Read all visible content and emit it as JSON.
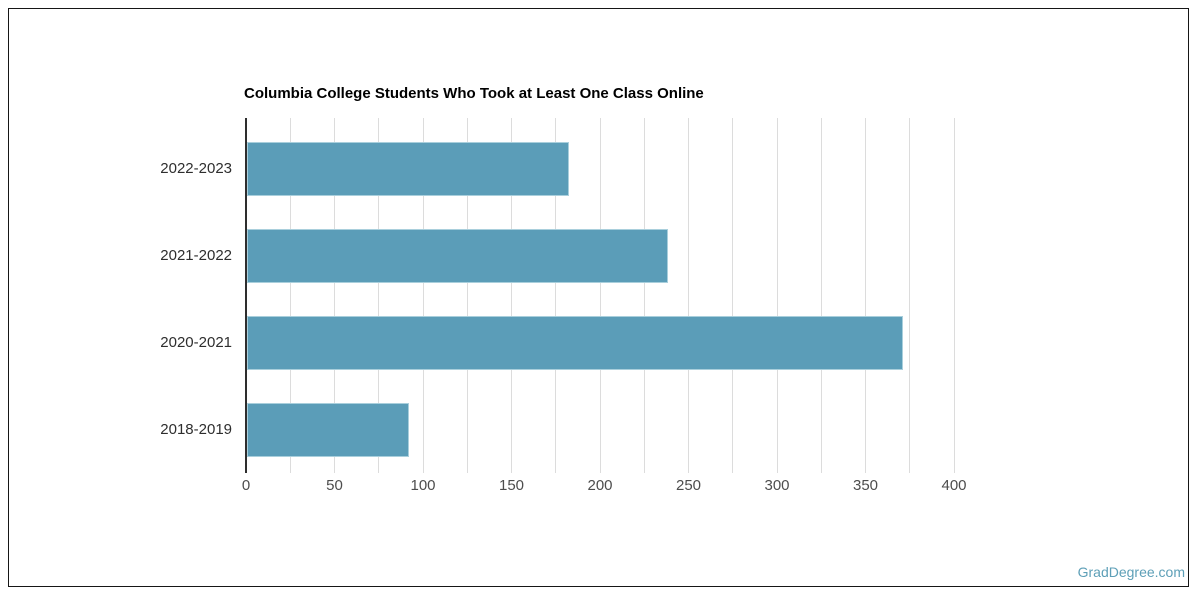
{
  "chart_data": {
    "type": "bar",
    "orientation": "horizontal",
    "title": "Columbia College Students Who Took at Least One Class Online",
    "categories": [
      "2022-2023",
      "2021-2022",
      "2020-2021",
      "2018-2019"
    ],
    "values": [
      182,
      238,
      371,
      92
    ],
    "xlabel": "",
    "ylabel": "",
    "xlim": [
      0,
      400
    ],
    "x_tick_labels": [
      "0",
      "50",
      "100",
      "150",
      "200",
      "250",
      "300",
      "350",
      "400"
    ],
    "x_major_tick_step": 50,
    "x_minor_grid_step": 25,
    "grid": true,
    "legend_position": "none",
    "bar_color": "#5b9db8",
    "bar_border_color": "#a9cfdc",
    "gridline_color": "#dcdcdc",
    "axis_color": "#2e2e2e",
    "title_color": "#000000",
    "tick_label_color": "#4d4d4d",
    "category_label_color": "#2e2e2e"
  },
  "watermark": {
    "text": "GradDegree.com",
    "color": "#5d9fb7"
  }
}
